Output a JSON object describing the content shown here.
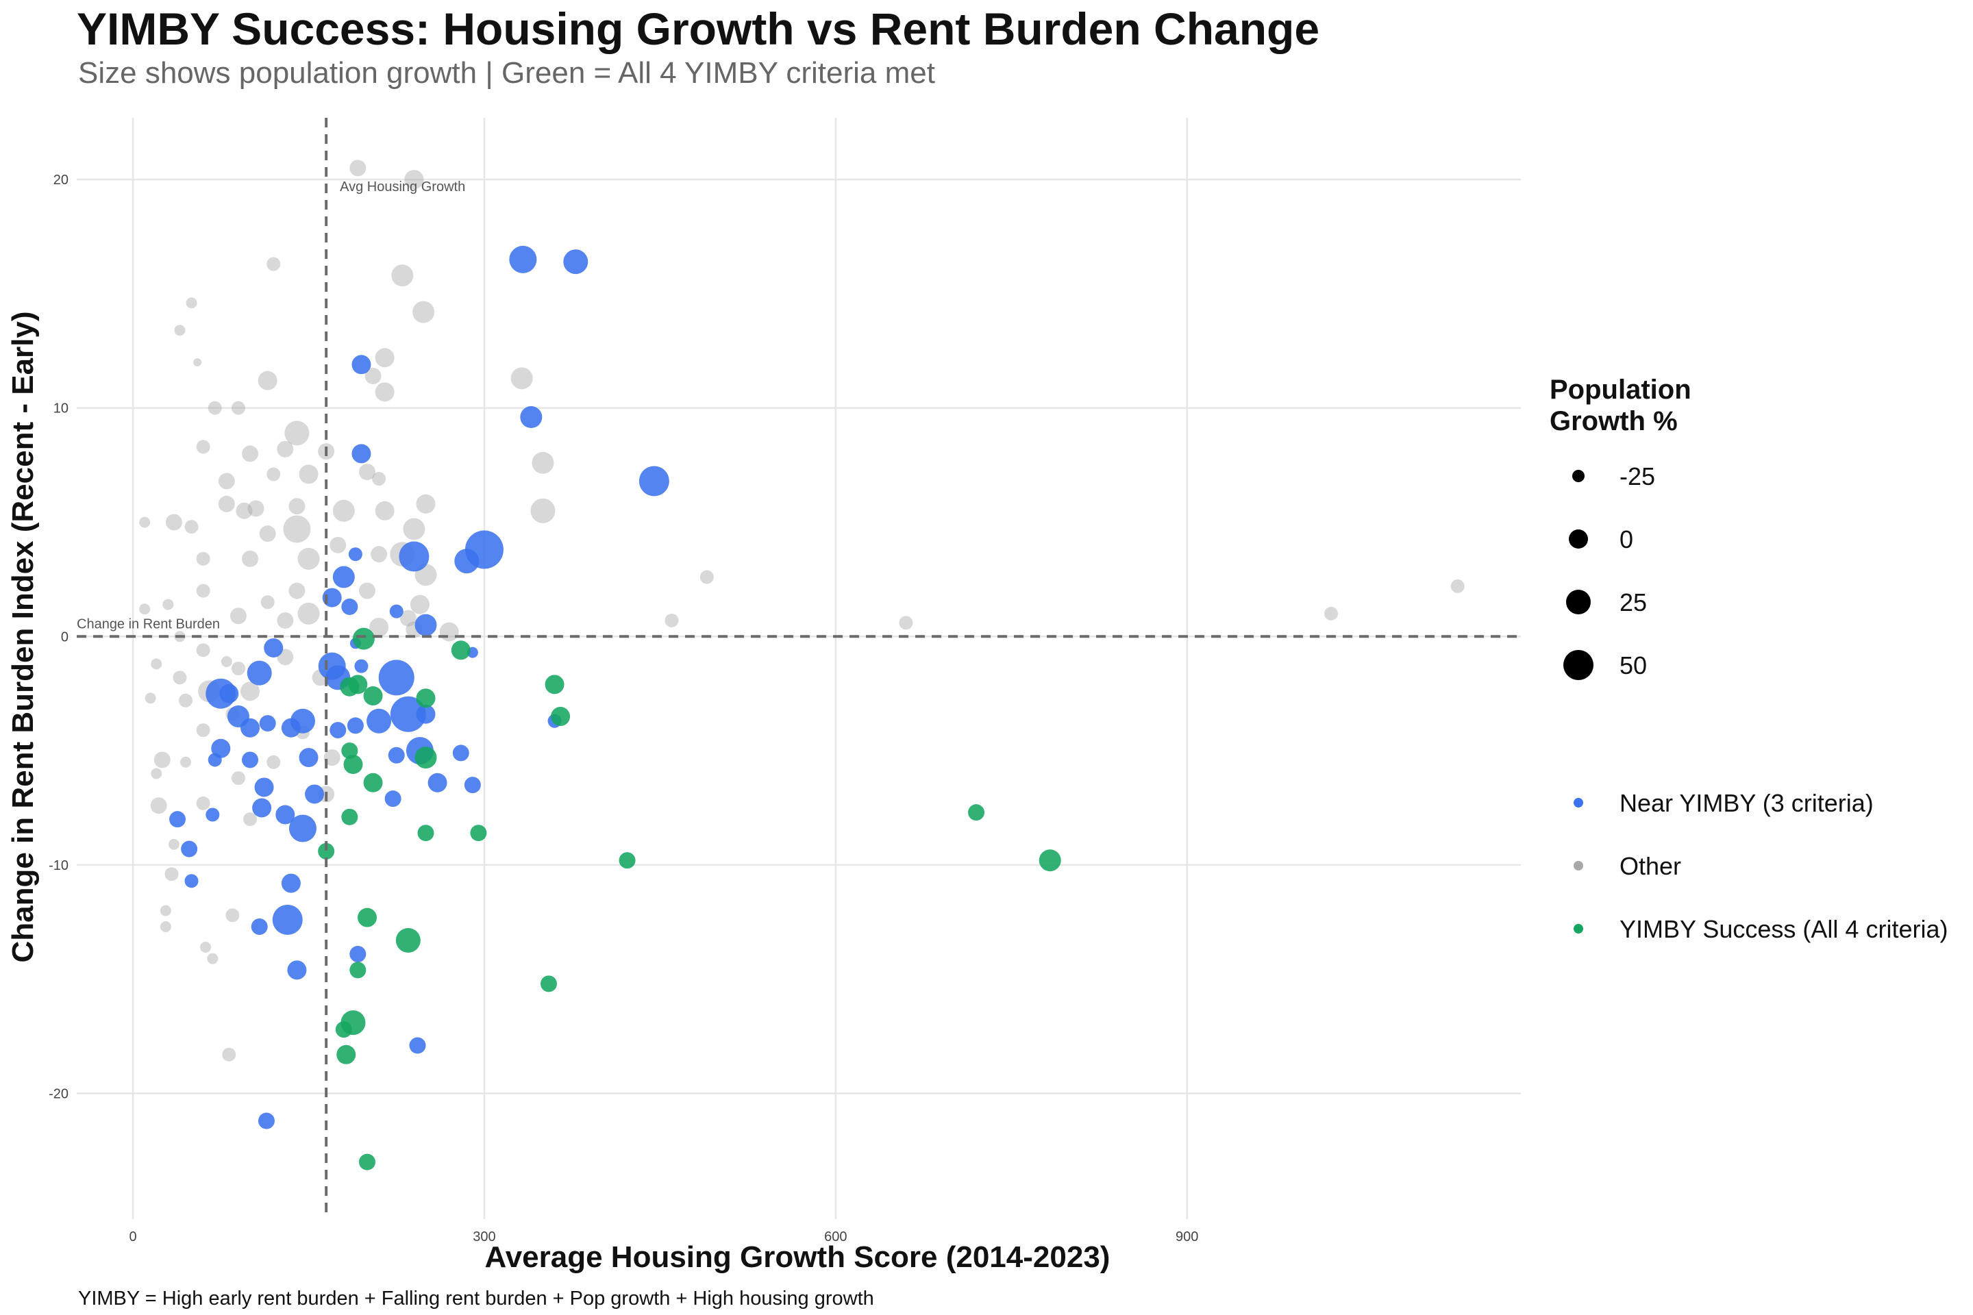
{
  "chart_data": {
    "type": "scatter",
    "title": "YIMBY Success: Housing Growth vs Rent Burden Change",
    "subtitle": "Size shows population growth | Green = All 4 YIMBY criteria met",
    "caption": "YIMBY = High early rent burden + Falling rent burden + Pop growth + High housing growth",
    "xlabel": "Average Housing Growth Score (2014-2023)",
    "ylabel": "Change in Rent Burden Index (Recent - Early)",
    "xlim": [
      -48,
      1185
    ],
    "ylim": [
      -25.5,
      22.7
    ],
    "x_ticks": [
      0,
      300,
      600,
      900
    ],
    "y_ticks": [
      -20,
      -10,
      0,
      10,
      20
    ],
    "grid": true,
    "reference_lines": {
      "vertical": {
        "x": 165,
        "label": "Avg Housing Growth"
      },
      "horizontal": {
        "y": 0,
        "label": "Change in Rent Burden"
      }
    },
    "size_legend": {
      "title": "Population Growth %",
      "title_lines": [
        "Population",
        "Growth %"
      ],
      "entries": [
        {
          "label": "-25",
          "value": -25
        },
        {
          "label": "0",
          "value": 0
        },
        {
          "label": "25",
          "value": 25
        },
        {
          "label": "50",
          "value": 50
        }
      ]
    },
    "color_legend": [
      {
        "label": "Near YIMBY (3 criteria)",
        "color": "#3b73ee"
      },
      {
        "label": "Other",
        "color": "#a8a8a8"
      },
      {
        "label": "YIMBY Success (All 4 criteria)",
        "color": "#14a660"
      }
    ],
    "series": [
      {
        "name": "Near YIMBY (3 criteria)",
        "color": "#3b73ee",
        "points": [
          [
            333,
            16.5,
            20
          ],
          [
            378,
            16.4,
            18
          ],
          [
            195,
            11.9,
            14
          ],
          [
            340,
            9.6,
            16
          ],
          [
            445,
            6.8,
            22
          ],
          [
            195,
            8.0,
            14
          ],
          [
            300,
            3.8,
            28
          ],
          [
            285,
            3.3,
            18
          ],
          [
            240,
            3.5,
            22
          ],
          [
            190,
            3.6,
            10
          ],
          [
            180,
            2.6,
            16
          ],
          [
            170,
            1.7,
            14
          ],
          [
            185,
            1.3,
            12
          ],
          [
            225,
            1.1,
            10
          ],
          [
            250,
            0.5,
            16
          ],
          [
            190,
            -0.3,
            8
          ],
          [
            120,
            -0.5,
            14
          ],
          [
            290,
            -0.7,
            8
          ],
          [
            170,
            -1.3,
            20
          ],
          [
            195,
            -1.3,
            10
          ],
          [
            108,
            -1.6,
            18
          ],
          [
            175,
            -1.8,
            18
          ],
          [
            225,
            -1.8,
            26
          ],
          [
            75,
            -2.5,
            22
          ],
          [
            82,
            -2.5,
            14
          ],
          [
            90,
            -3.5,
            16
          ],
          [
            100,
            -4.0,
            14
          ],
          [
            115,
            -3.8,
            12
          ],
          [
            135,
            -4.0,
            14
          ],
          [
            145,
            -3.7,
            18
          ],
          [
            175,
            -4.1,
            12
          ],
          [
            190,
            -3.9,
            12
          ],
          [
            210,
            -3.7,
            18
          ],
          [
            235,
            -3.4,
            26
          ],
          [
            250,
            -3.4,
            14
          ],
          [
            360,
            -3.7,
            10
          ],
          [
            75,
            -4.9,
            14
          ],
          [
            70,
            -5.4,
            10
          ],
          [
            100,
            -5.4,
            12
          ],
          [
            150,
            -5.3,
            14
          ],
          [
            225,
            -5.2,
            12
          ],
          [
            245,
            -5.0,
            20
          ],
          [
            280,
            -5.1,
            12
          ],
          [
            112,
            -6.6,
            14
          ],
          [
            155,
            -6.9,
            14
          ],
          [
            260,
            -6.4,
            14
          ],
          [
            290,
            -6.5,
            12
          ],
          [
            110,
            -7.5,
            14
          ],
          [
            130,
            -7.8,
            14
          ],
          [
            68,
            -7.8,
            10
          ],
          [
            38,
            -8.0,
            12
          ],
          [
            145,
            -8.4,
            20
          ],
          [
            222,
            -7.1,
            12
          ],
          [
            48,
            -9.3,
            12
          ],
          [
            50,
            -10.7,
            10
          ],
          [
            135,
            -10.8,
            14
          ],
          [
            108,
            -12.7,
            12
          ],
          [
            132,
            -12.4,
            22
          ],
          [
            140,
            -14.6,
            14
          ],
          [
            192,
            -13.9,
            12
          ],
          [
            243,
            -17.9,
            12
          ],
          [
            114,
            -21.2,
            12
          ]
        ]
      },
      {
        "name": "Other",
        "color": "#a8a8a8",
        "points": [
          [
            192,
            20.5,
            12
          ],
          [
            240,
            20.0,
            14
          ],
          [
            120,
            16.3,
            10
          ],
          [
            230,
            15.8,
            16
          ],
          [
            248,
            14.2,
            16
          ],
          [
            50,
            14.6,
            8
          ],
          [
            40,
            13.4,
            8
          ],
          [
            215,
            12.2,
            14
          ],
          [
            205,
            11.4,
            12
          ],
          [
            115,
            11.2,
            14
          ],
          [
            55,
            12.0,
            6
          ],
          [
            215,
            10.7,
            14
          ],
          [
            332,
            11.3,
            16
          ],
          [
            70,
            10.0,
            10
          ],
          [
            90,
            10.0,
            10
          ],
          [
            140,
            8.9,
            18
          ],
          [
            130,
            8.2,
            12
          ],
          [
            165,
            8.1,
            12
          ],
          [
            60,
            8.3,
            10
          ],
          [
            100,
            8.0,
            12
          ],
          [
            350,
            7.6,
            16
          ],
          [
            200,
            7.2,
            12
          ],
          [
            120,
            7.1,
            10
          ],
          [
            150,
            7.1,
            14
          ],
          [
            80,
            6.8,
            12
          ],
          [
            210,
            6.9,
            10
          ],
          [
            95,
            5.5,
            12
          ],
          [
            80,
            5.8,
            12
          ],
          [
            105,
            5.6,
            12
          ],
          [
            140,
            5.7,
            12
          ],
          [
            180,
            5.5,
            16
          ],
          [
            215,
            5.5,
            14
          ],
          [
            250,
            5.8,
            14
          ],
          [
            350,
            5.5,
            18
          ],
          [
            10,
            5.0,
            8
          ],
          [
            35,
            5.0,
            12
          ],
          [
            50,
            4.8,
            10
          ],
          [
            115,
            4.5,
            12
          ],
          [
            140,
            4.7,
            20
          ],
          [
            240,
            4.7,
            16
          ],
          [
            60,
            3.4,
            10
          ],
          [
            100,
            3.4,
            12
          ],
          [
            150,
            3.4,
            16
          ],
          [
            175,
            4.0,
            12
          ],
          [
            210,
            3.6,
            12
          ],
          [
            230,
            3.6,
            18
          ],
          [
            250,
            2.7,
            16
          ],
          [
            490,
            2.6,
            10
          ],
          [
            200,
            2.0,
            12
          ],
          [
            140,
            2.0,
            12
          ],
          [
            60,
            2.0,
            10
          ],
          [
            30,
            1.4,
            8
          ],
          [
            10,
            1.2,
            8
          ],
          [
            115,
            1.5,
            10
          ],
          [
            245,
            1.4,
            14
          ],
          [
            235,
            0.8,
            12
          ],
          [
            270,
            0.2,
            14
          ],
          [
            460,
            0.7,
            10
          ],
          [
            660,
            0.6,
            10
          ],
          [
            1023,
            1.0,
            10
          ],
          [
            1131,
            2.2,
            10
          ],
          [
            90,
            0.9,
            12
          ],
          [
            150,
            1.0,
            16
          ],
          [
            130,
            0.7,
            12
          ],
          [
            210,
            0.4,
            14
          ],
          [
            240,
            0.3,
            12
          ],
          [
            40,
            0.0,
            8
          ],
          [
            60,
            -0.6,
            10
          ],
          [
            130,
            -0.9,
            12
          ],
          [
            20,
            -1.2,
            8
          ],
          [
            90,
            -1.4,
            10
          ],
          [
            80,
            -1.1,
            8
          ],
          [
            160,
            -1.8,
            12
          ],
          [
            40,
            -1.8,
            10
          ],
          [
            65,
            -2.4,
            16
          ],
          [
            100,
            -2.4,
            14
          ],
          [
            15,
            -2.7,
            8
          ],
          [
            45,
            -2.8,
            10
          ],
          [
            85,
            -3.4,
            10
          ],
          [
            60,
            -4.1,
            10
          ],
          [
            145,
            -4.2,
            10
          ],
          [
            25,
            -5.4,
            12
          ],
          [
            45,
            -5.5,
            8
          ],
          [
            120,
            -5.5,
            10
          ],
          [
            170,
            -5.3,
            12
          ],
          [
            20,
            -6.0,
            8
          ],
          [
            90,
            -6.2,
            10
          ],
          [
            60,
            -7.3,
            10
          ],
          [
            22,
            -7.4,
            12
          ],
          [
            165,
            -6.9,
            12
          ],
          [
            100,
            -8.0,
            10
          ],
          [
            35,
            -9.1,
            8
          ],
          [
            33,
            -10.4,
            10
          ],
          [
            85,
            -12.2,
            10
          ],
          [
            28,
            -12.0,
            8
          ],
          [
            28,
            -12.7,
            8
          ],
          [
            62,
            -13.6,
            8
          ],
          [
            68,
            -14.1,
            8
          ],
          [
            82,
            -18.3,
            10
          ]
        ]
      },
      {
        "name": "YIMBY Success (All 4 criteria)",
        "color": "#14a660",
        "points": [
          [
            197,
            -0.1,
            16
          ],
          [
            280,
            -0.6,
            14
          ],
          [
            360,
            -2.1,
            14
          ],
          [
            192,
            -2.1,
            14
          ],
          [
            185,
            -2.2,
            14
          ],
          [
            205,
            -2.6,
            14
          ],
          [
            250,
            -2.7,
            14
          ],
          [
            365,
            -3.5,
            14
          ],
          [
            185,
            -5.0,
            12
          ],
          [
            250,
            -5.3,
            16
          ],
          [
            188,
            -5.6,
            14
          ],
          [
            205,
            -6.4,
            14
          ],
          [
            185,
            -7.9,
            12
          ],
          [
            250,
            -8.6,
            12
          ],
          [
            295,
            -8.6,
            12
          ],
          [
            165,
            -9.4,
            12
          ],
          [
            422,
            -9.8,
            12
          ],
          [
            720,
            -7.7,
            12
          ],
          [
            783,
            -9.8,
            16
          ],
          [
            200,
            -12.3,
            14
          ],
          [
            235,
            -13.3,
            18
          ],
          [
            192,
            -14.6,
            12
          ],
          [
            355,
            -15.2,
            12
          ],
          [
            188,
            -16.9,
            18
          ],
          [
            180,
            -17.2,
            12
          ],
          [
            182,
            -18.3,
            14
          ],
          [
            200,
            -23.0,
            12
          ]
        ]
      }
    ]
  }
}
